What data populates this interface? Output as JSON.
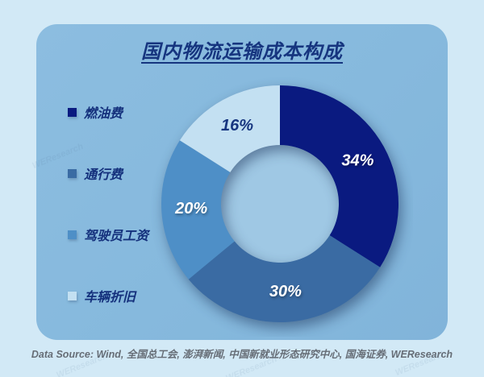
{
  "title": "国内物流运输成本构成",
  "legend": {
    "items": [
      {
        "label": "燃油费",
        "color": "#0a1a80"
      },
      {
        "label": "通行费",
        "color": "#3a6ba3"
      },
      {
        "label": "驾驶员工资",
        "color": "#4e8fc7"
      },
      {
        "label": "车辆折旧",
        "color": "#c3e0f2"
      }
    ]
  },
  "chart_data": {
    "type": "pie",
    "subtype": "donut",
    "title": "国内物流运输成本构成",
    "categories": [
      "燃油费",
      "通行费",
      "驾驶员工资",
      "车辆折旧"
    ],
    "values": [
      34,
      30,
      20,
      16
    ],
    "unit": "%",
    "data_labels": [
      "34%",
      "30%",
      "20%",
      "16%"
    ],
    "colors": [
      "#0a1a80",
      "#3a6ba3",
      "#4e8fc7",
      "#c3e0f2"
    ],
    "label_colors": [
      "#ffffff",
      "#ffffff",
      "#ffffff",
      "#16357f"
    ],
    "start_angle_deg": 0,
    "direction": "clockwise",
    "inner_radius_ratio": 0.5,
    "legend_position": "left",
    "hole_color": "#9fc8e4"
  },
  "footer": {
    "text": "Data Source: Wind, 全国总工会, 澎湃新闻, 中国新就业形态研究中心, 国海证券, WEResearch"
  },
  "watermark": "WEResearch",
  "colors": {
    "page_bg": "#d2e9f6",
    "panel_bg": "#87badd",
    "title_text": "#16357f",
    "legend_text": "#14307c",
    "footer_text": "#666d76",
    "donut_hole": "#9fc8e4"
  }
}
